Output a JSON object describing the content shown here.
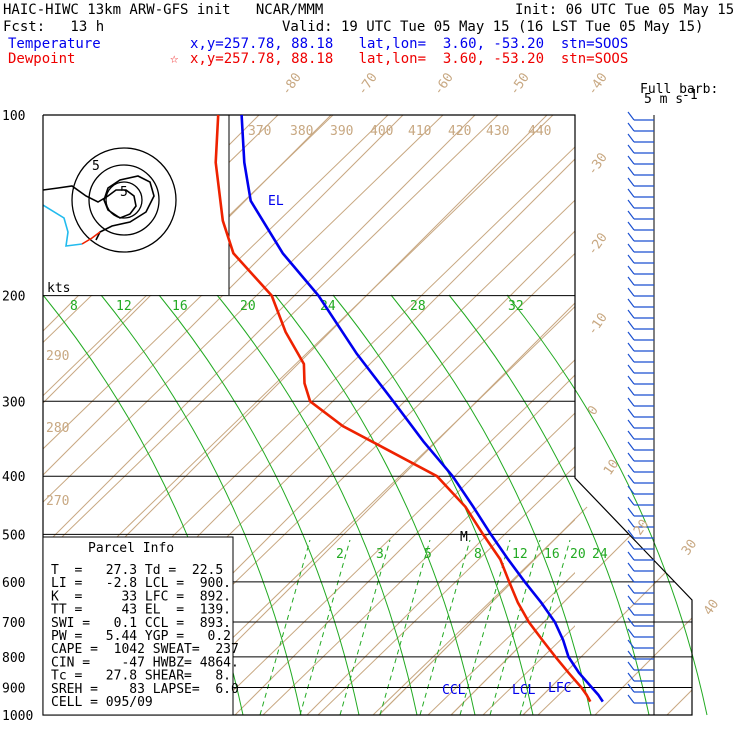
{
  "header": {
    "model_line": "HAIC-HIWC 13km ARW-GFS init   NCAR/MMM",
    "init": "Init: 06 UTC Tue 05 May 15",
    "fcst": "Fcst:   13 h",
    "valid": "Valid: 19 UTC Tue 05 May 15 (16 LST Tue 05 May 15)",
    "temp_label": "Temperature",
    "temp_info": "x,y=257.78, 88.18   lat,lon=  3.60, -53.20  stn=SOOS",
    "dew_label": "Dewpoint",
    "dew_marker": "☆",
    "dew_info": "x,y=257.78, 88.18   lat,lon=  3.60, -53.20  stn=SOOS",
    "barb_key_1": "Full barb:",
    "barb_key_2": "5 m s",
    "barb_key_3": "-1"
  },
  "colors": {
    "temperature": "#0000ee",
    "dewpoint": "#ee2200",
    "isotherm": "#c8a882",
    "mixing_ratio": "#22aa22",
    "adiabat": "#22aa22"
  },
  "parcel_info": {
    "title": "Parcel Info",
    "rows": [
      "T  =   27.3 Td =  22.5",
      "LI =   -2.8 LCL =  900.",
      "K  =     33 LFC =  892.",
      "TT =     43 EL  =  139.",
      "SWI =   0.1 CCL =  893.",
      "PW =   5.44 YGP =   0.2",
      "CAPE =  1042 SWEAT=  237",
      "CIN =    -47 HWBZ= 4864.",
      "Tc =   27.8 SHEAR=   8.",
      "SREH =    83 LAPSE=  6.0",
      "CELL = 095/09"
    ]
  },
  "hodograph": {
    "unit_label": "kts",
    "ring_labels": [
      "5",
      "5"
    ]
  },
  "chart_data": {
    "type": "line",
    "title": "",
    "ylabel": "",
    "pressure_levels": [
      100,
      200,
      300,
      400,
      500,
      600,
      700,
      800,
      900,
      1000
    ],
    "isotherm_labels": [
      "-80",
      "-70",
      "-60",
      "-50",
      "-40",
      "-30",
      "-20",
      "-10",
      "0",
      "10",
      "20",
      "30",
      "40"
    ],
    "theta_labels": [
      "370",
      "380",
      "390",
      "400",
      "410",
      "420",
      "430",
      "440",
      "290",
      "280",
      "270"
    ],
    "mixing_ratio_labels_upper": [
      "8",
      "12",
      "16",
      "20",
      "24",
      "28",
      "32"
    ],
    "mixing_ratio_labels_lower": [
      "2",
      "3",
      "5",
      "8",
      "12",
      "16",
      "20",
      "24"
    ],
    "level_markers": [
      {
        "label": "EL",
        "p": 139
      },
      {
        "label": "CCL",
        "p": 893
      },
      {
        "label": "LCL",
        "p": 900
      },
      {
        "label": "LFC",
        "p": 892
      },
      {
        "label": "M",
        "p": 495
      }
    ],
    "series": [
      {
        "name": "Temperature",
        "points": [
          [
            100,
            -74
          ],
          [
            120,
            -76
          ],
          [
            139,
            -76
          ],
          [
            170,
            -67
          ],
          [
            200,
            -56
          ],
          [
            250,
            -45
          ],
          [
            300,
            -34
          ],
          [
            350,
            -25
          ],
          [
            400,
            -16
          ],
          [
            450,
            -10
          ],
          [
            500,
            -5
          ],
          [
            550,
            0
          ],
          [
            600,
            5
          ],
          [
            650,
            10
          ],
          [
            700,
            14
          ],
          [
            750,
            16
          ],
          [
            800,
            17
          ],
          [
            850,
            20
          ],
          [
            900,
            24
          ],
          [
            925,
            26
          ],
          [
            950,
            27.3
          ]
        ]
      },
      {
        "name": "Dewpoint",
        "points": [
          [
            100,
            -83
          ],
          [
            120,
            -87
          ],
          [
            150,
            -88
          ],
          [
            170,
            -86
          ],
          [
            200,
            -74
          ],
          [
            230,
            -71
          ],
          [
            260,
            -66
          ],
          [
            280,
            -67
          ],
          [
            300,
            -66
          ],
          [
            330,
            -55
          ],
          [
            360,
            -40
          ],
          [
            400,
            -22
          ],
          [
            450,
            -13
          ],
          [
            500,
            -8
          ],
          [
            550,
            -3
          ],
          [
            600,
            -1
          ],
          [
            650,
            1
          ],
          [
            700,
            4
          ],
          [
            750,
            8
          ],
          [
            800,
            12
          ],
          [
            850,
            16
          ],
          [
            900,
            20
          ],
          [
            925,
            21.5
          ],
          [
            950,
            22.5
          ]
        ]
      }
    ]
  }
}
